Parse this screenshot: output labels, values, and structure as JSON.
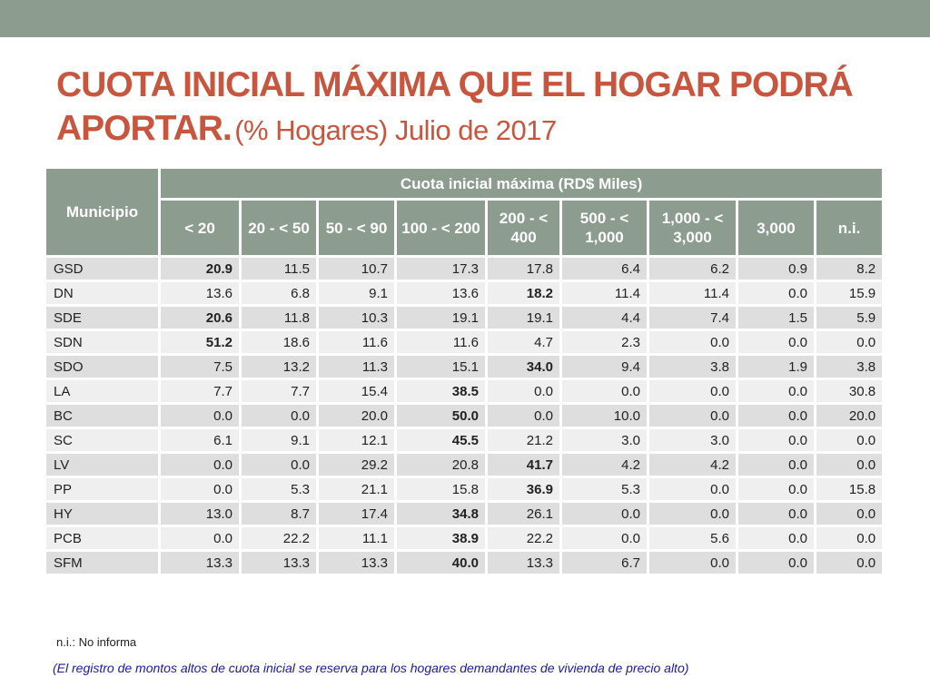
{
  "title": {
    "main": "CUOTA INICIAL MÁXIMA QUE EL HOGAR PODRÁ APORTAR.",
    "sub": "(% Hogares) Julio de 2017"
  },
  "table": {
    "muni_header": "Municipio",
    "group_header": "Cuota inicial máxima (RD$ Miles)",
    "bins": [
      "< 20",
      "20 - < 50",
      "50 - < 90",
      "100 - < 200",
      "200 - < 400",
      "500 - < 1,000",
      "1,000 - < 3,000",
      "3,000",
      "n.i."
    ],
    "rows": [
      {
        "muni": "GSD",
        "values": [
          "20.9",
          "11.5",
          "10.7",
          "17.3",
          "17.8",
          "6.4",
          "6.2",
          "0.9",
          "8.2"
        ],
        "bold_index": 0
      },
      {
        "muni": "DN",
        "values": [
          "13.6",
          "6.8",
          "9.1",
          "13.6",
          "18.2",
          "11.4",
          "11.4",
          "0.0",
          "15.9"
        ],
        "bold_index": 4
      },
      {
        "muni": "SDE",
        "values": [
          "20.6",
          "11.8",
          "10.3",
          "19.1",
          "19.1",
          "4.4",
          "7.4",
          "1.5",
          "5.9"
        ],
        "bold_index": 0
      },
      {
        "muni": "SDN",
        "values": [
          "51.2",
          "18.6",
          "11.6",
          "11.6",
          "4.7",
          "2.3",
          "0.0",
          "0.0",
          "0.0"
        ],
        "bold_index": 0
      },
      {
        "muni": "SDO",
        "values": [
          "7.5",
          "13.2",
          "11.3",
          "15.1",
          "34.0",
          "9.4",
          "3.8",
          "1.9",
          "3.8"
        ],
        "bold_index": 4
      },
      {
        "muni": "LA",
        "values": [
          "7.7",
          "7.7",
          "15.4",
          "38.5",
          "0.0",
          "0.0",
          "0.0",
          "0.0",
          "30.8"
        ],
        "bold_index": 3
      },
      {
        "muni": "BC",
        "values": [
          "0.0",
          "0.0",
          "20.0",
          "50.0",
          "0.0",
          "10.0",
          "0.0",
          "0.0",
          "20.0"
        ],
        "bold_index": 3
      },
      {
        "muni": "SC",
        "values": [
          "6.1",
          "9.1",
          "12.1",
          "45.5",
          "21.2",
          "3.0",
          "3.0",
          "0.0",
          "0.0"
        ],
        "bold_index": 3
      },
      {
        "muni": "LV",
        "values": [
          "0.0",
          "0.0",
          "29.2",
          "20.8",
          "41.7",
          "4.2",
          "4.2",
          "0.0",
          "0.0"
        ],
        "bold_index": 4
      },
      {
        "muni": "PP",
        "values": [
          "0.0",
          "5.3",
          "21.1",
          "15.8",
          "36.9",
          "5.3",
          "0.0",
          "0.0",
          "15.8"
        ],
        "bold_index": 4
      },
      {
        "muni": "HY",
        "values": [
          "13.0",
          "8.7",
          "17.4",
          "34.8",
          "26.1",
          "0.0",
          "0.0",
          "0.0",
          "0.0"
        ],
        "bold_index": 3
      },
      {
        "muni": "PCB",
        "values": [
          "0.0",
          "22.2",
          "11.1",
          "38.9",
          "22.2",
          "0.0",
          "5.6",
          "0.0",
          "0.0"
        ],
        "bold_index": 3
      },
      {
        "muni": "SFM",
        "values": [
          "13.3",
          "13.3",
          "13.3",
          "40.0",
          "13.3",
          "6.7",
          "0.0",
          "0.0",
          "0.0"
        ],
        "bold_index": 3
      }
    ]
  },
  "notes": {
    "ni": "n.i.: No informa",
    "reserve": "(El registro de montos altos de cuota inicial se reserva para los hogares demandantes de vivienda de precio alto)"
  },
  "colors": {
    "header_bg": "#8c9c8f",
    "title": "#c8553d",
    "note_blue": "#1a1aa0"
  }
}
